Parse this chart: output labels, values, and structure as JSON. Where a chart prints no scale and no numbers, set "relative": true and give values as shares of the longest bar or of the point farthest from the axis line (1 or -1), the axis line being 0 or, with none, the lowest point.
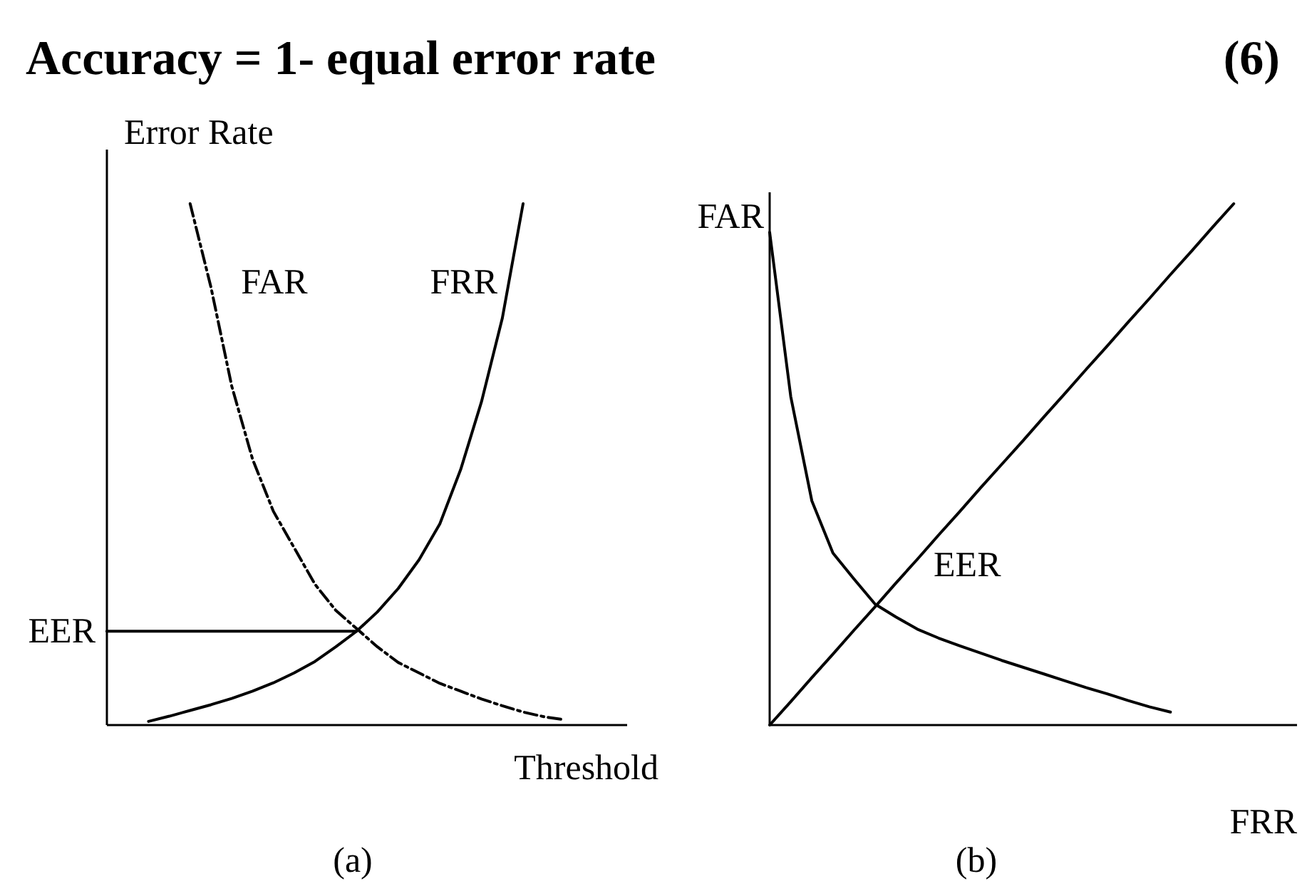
{
  "chart_data": [
    {
      "type": "line",
      "title": "Accuracy = 1- equal error rate",
      "xlabel": "Threshold",
      "ylabel": "Error Rate",
      "relative": true,
      "categories": [
        null,
        null,
        null,
        null,
        null,
        null,
        null,
        null,
        null,
        null,
        null,
        null,
        null,
        null,
        null,
        null,
        null,
        null,
        null,
        null,
        null,
        null,
        null,
        null,
        null,
        null
      ],
      "series": [
        {
          "name": "FAR",
          "color": "#000000",
          "line_style": "dashed",
          "values": [
            null,
            null,
            null,
            null,
            1,
            0.84,
            0.65,
            0.51,
            0.41,
            0.34,
            0.27,
            0.22,
            0.185,
            0.15,
            0.12,
            0.1,
            0.08,
            0.065,
            0.05,
            0.037,
            0.025,
            0.016,
            0.01,
            null,
            null,
            null
          ]
        },
        {
          "name": "FRR",
          "color": "#000000",
          "line_style": "solid",
          "values": [
            null,
            null,
            0.007,
            0.017,
            0.028,
            0.039,
            0.051,
            0.065,
            0.081,
            0.1,
            0.122,
            0.15,
            0.18,
            0.217,
            0.262,
            0.317,
            0.386,
            0.49,
            0.62,
            0.78,
            1,
            null,
            null,
            null,
            null,
            null
          ]
        },
        {
          "name": "EER",
          "color": "#000000",
          "line_style": "solid",
          "values": [
            0.18,
            0.18,
            0.18,
            0.18,
            0.18,
            0.18,
            0.18,
            0.18,
            0.18,
            0.18,
            0.18,
            0.18,
            0.18,
            null,
            null,
            null,
            null,
            null,
            null,
            null,
            null,
            null,
            null,
            null,
            null,
            null
          ]
        }
      ],
      "annotations": [
        "(a)"
      ]
    },
    {
      "type": "line",
      "title": "(6)",
      "xlabel": "FRR",
      "ylabel": "FAR",
      "relative": true,
      "categories": [
        null,
        null,
        null,
        null,
        null,
        null,
        null,
        null,
        null,
        null,
        null,
        null,
        null,
        null,
        null,
        null,
        null,
        null,
        null,
        null,
        null,
        null,
        null,
        null,
        null,
        null
      ],
      "series": [
        {
          "color": "#000000",
          "line_style": "solid",
          "values": [
            0,
            0.045,
            0.091,
            0.136,
            0.182,
            0.227,
            0.273,
            0.318,
            0.364,
            0.409,
            0.455,
            0.5,
            0.545,
            0.591,
            0.636,
            0.682,
            0.727,
            0.773,
            0.818,
            0.864,
            0.909,
            0.955,
            1,
            null,
            null,
            null
          ]
        },
        {
          "color": "#000000",
          "line_style": "solid",
          "values": [
            0.945,
            0.63,
            0.43,
            0.33,
            0.28,
            0.232,
            0.207,
            0.184,
            0.167,
            0.152,
            0.138,
            0.124,
            0.111,
            0.098,
            0.085,
            0.072,
            0.06,
            0.047,
            0.035,
            0.025,
            null,
            null,
            null,
            null,
            null,
            null
          ]
        }
      ],
      "annotations": [
        "EER",
        "(b)"
      ]
    }
  ]
}
